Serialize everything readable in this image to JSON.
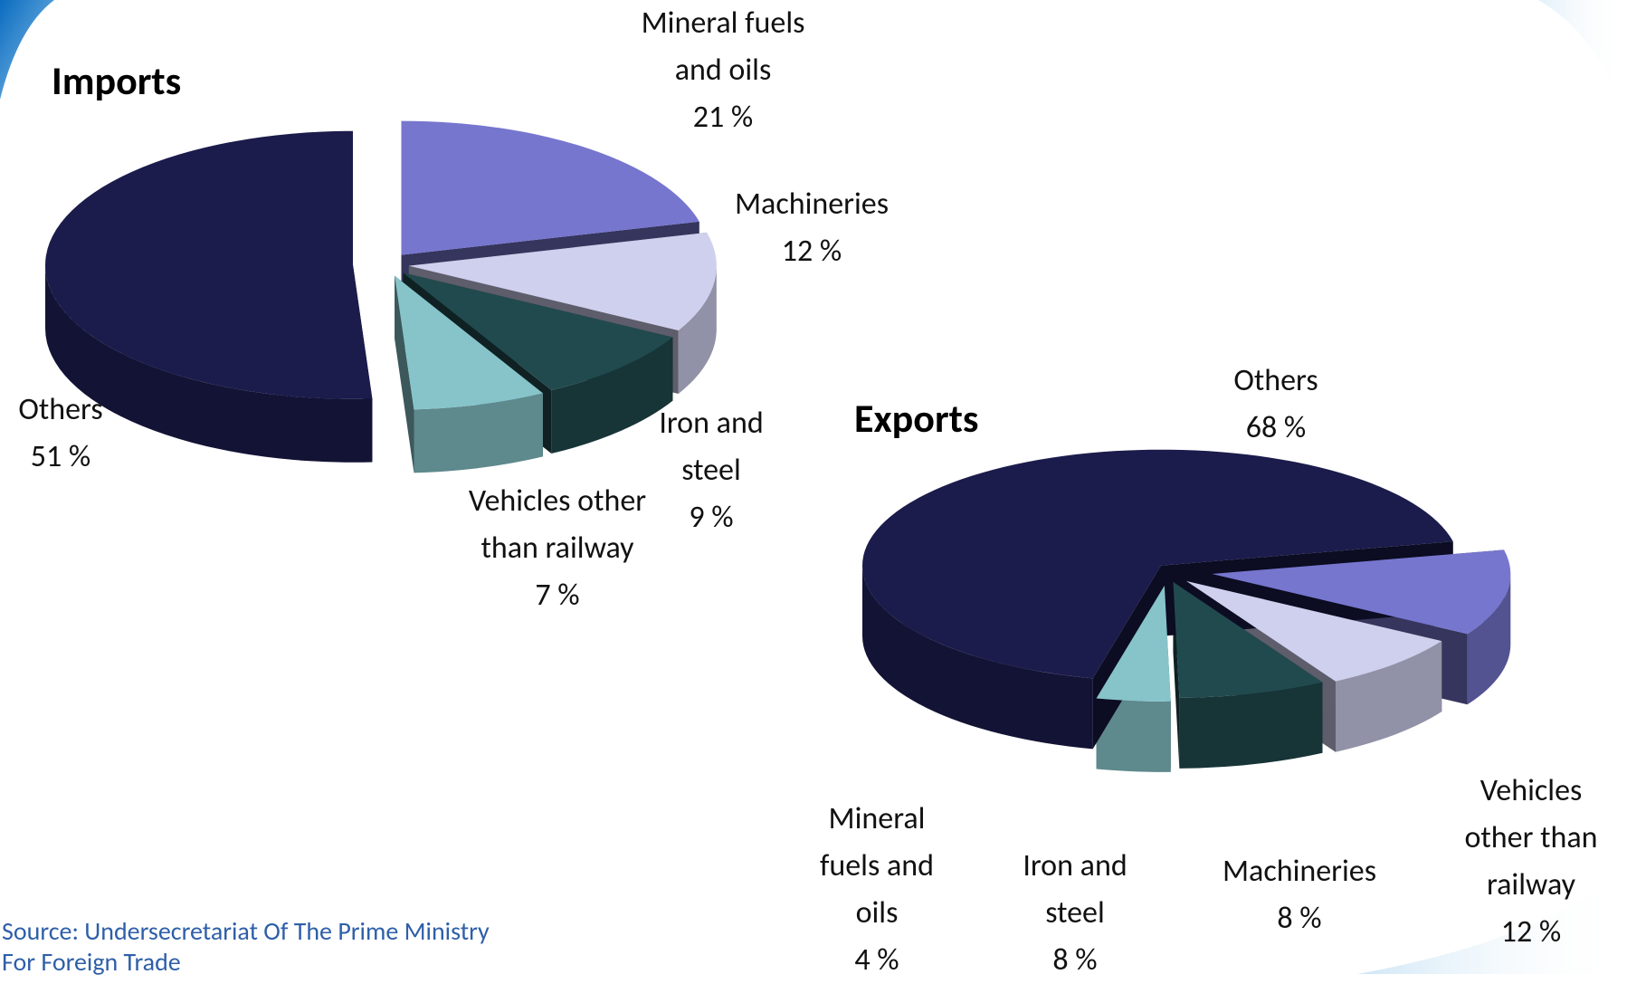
{
  "chart_data": [
    {
      "type": "pie",
      "title": "Imports",
      "categories": [
        "Mineral fuels and oils",
        "Machineries",
        "Iron and steel",
        "Vehicles other than railway",
        "Others"
      ],
      "values": [
        21,
        12,
        9,
        7,
        51
      ],
      "value_labels": [
        "21 %",
        "12 %",
        "9 %",
        "7 %",
        "51 %"
      ],
      "colors": [
        "#7676cf",
        "#cfcfee",
        "#214a4e",
        "#86c4ca",
        "#1b1b4c"
      ]
    },
    {
      "type": "pie",
      "title": "Exports",
      "categories": [
        "Vehicles other than railway",
        "Machineries",
        "Iron and steel",
        "Mineral fuels and oils",
        "Others"
      ],
      "values": [
        12,
        8,
        8,
        4,
        68
      ],
      "value_labels": [
        "12 %",
        "8 %",
        "8 %",
        "4 %",
        "68 %"
      ],
      "colors": [
        "#7676cf",
        "#cfcfee",
        "#214a4e",
        "#86c4ca",
        "#1b1b4c"
      ]
    }
  ],
  "source": "Source: Undersecretariat  Of  The Prime Ministry For Foreign Trade"
}
